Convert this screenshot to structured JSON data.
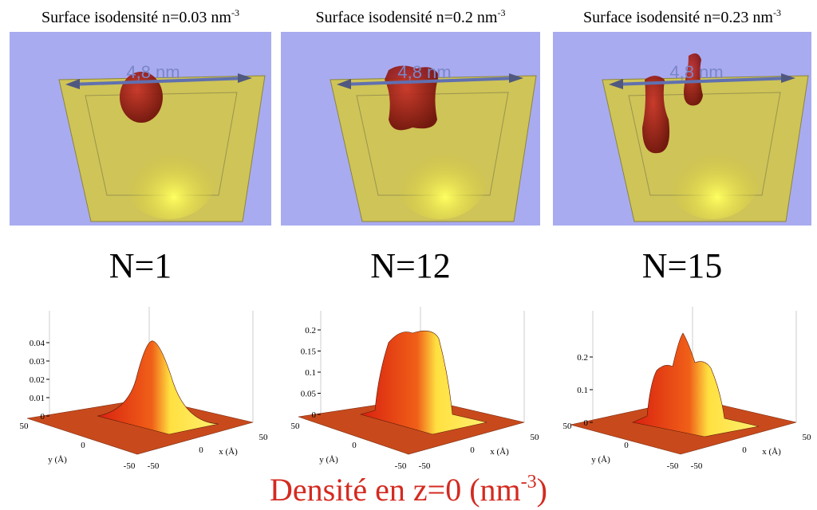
{
  "panels": [
    {
      "title": "Surface isodensité  n=0.03 nm",
      "title_exponent": "-3",
      "scale_label": "4,8 nm",
      "n_label": "N=1",
      "plot": {
        "z_ticks": [
          0.04,
          0.03,
          0.02,
          0.01,
          0
        ],
        "y_ticks": [
          50,
          0,
          -50
        ],
        "x_ticks": [
          -50,
          0,
          50
        ],
        "y_label": "y (Å)",
        "x_label": "x (Å)"
      }
    },
    {
      "title": "Surface isodensité n=0.2 nm",
      "title_exponent": "-3",
      "scale_label": "4,8 nm",
      "n_label": "N=12",
      "plot": {
        "z_ticks": [
          0.2,
          0.15,
          0.1,
          0.05,
          0
        ],
        "y_ticks": [
          50,
          0,
          -50
        ],
        "x_ticks": [
          -50,
          0,
          50
        ],
        "y_label": "y (Å)",
        "x_label": "x (Å)"
      }
    },
    {
      "title": "Surface isodensité n=0.23 nm",
      "title_exponent": "-3",
      "scale_label": "4,8 nm",
      "n_label": "N=15",
      "plot": {
        "z_ticks": [
          0.2,
          0.1,
          0
        ],
        "y_ticks": [
          50,
          0,
          -50
        ],
        "x_ticks": [
          -50,
          0,
          50
        ],
        "y_label": "y (Å)",
        "x_label": "x (Å)"
      }
    }
  ],
  "caption": {
    "text": "Densité en z=0 (nm",
    "exponent": "-3",
    "suffix": ")"
  }
}
